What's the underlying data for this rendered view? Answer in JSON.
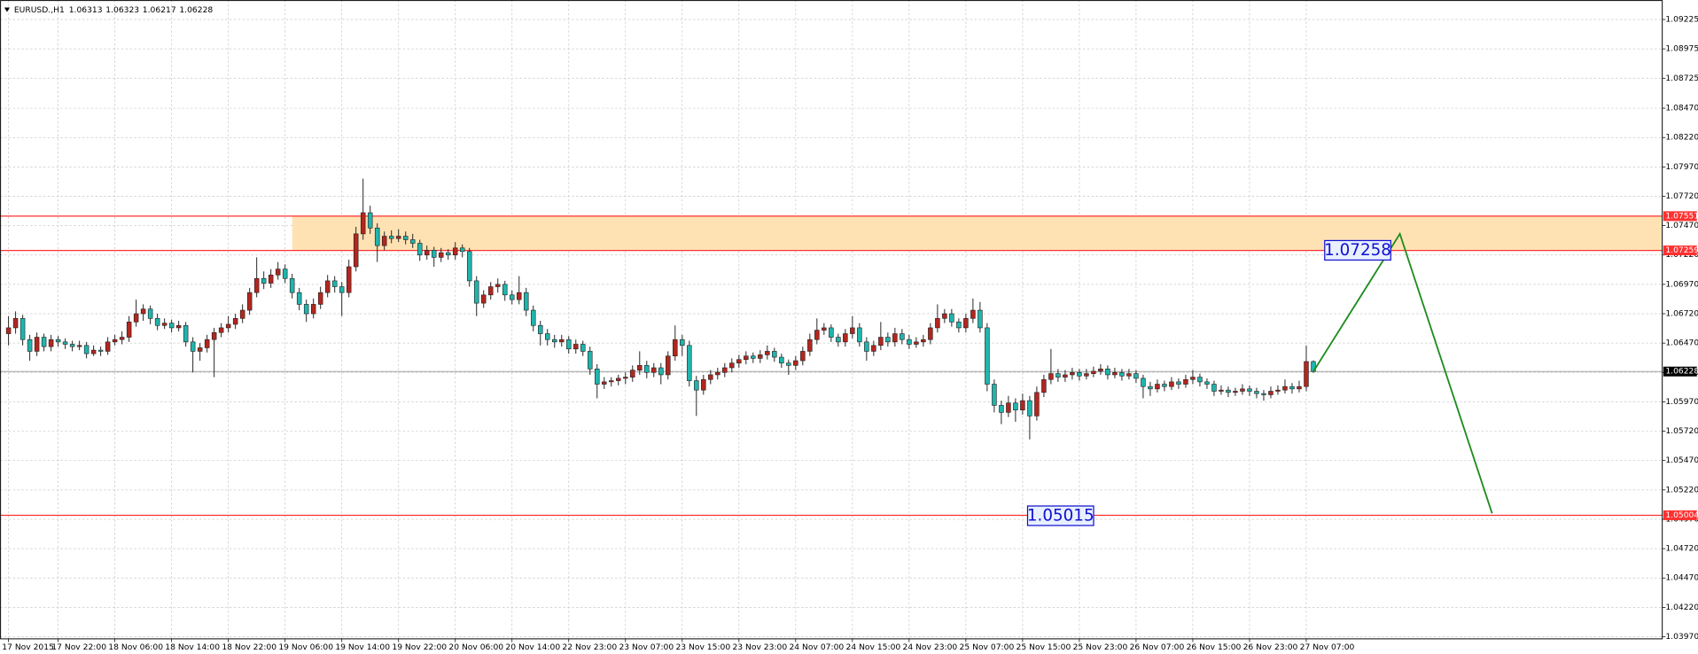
{
  "chart_data": {
    "type": "candlestick",
    "symbol": "EURUSD.,H1",
    "up_color": "#b3261e",
    "down_color": "#1fb5ad",
    "wick_color": "#222222",
    "xlim": [
      -1.2,
      233.2
    ],
    "ylim": [
      1.03952,
      1.09391
    ],
    "grid": true,
    "yticks": [
      1.09225,
      1.08975,
      1.08725,
      {
        "value": 1.0847,
        "label": "1.08470"
      },
      {
        "value": 1.0822,
        "label": "1.08220"
      },
      {
        "value": 1.0797,
        "label": "1.07970"
      },
      {
        "value": 1.0772,
        "label": "1.07720"
      },
      {
        "value": 1.0747,
        "label": "1.07470"
      },
      {
        "value": 1.0722,
        "label": "1.07220"
      },
      {
        "value": 1.0697,
        "label": "1.06970"
      },
      {
        "value": 1.0672,
        "label": "1.06720"
      },
      {
        "value": 1.0647,
        "label": "1.06470"
      },
      {
        "value": 1.0622,
        "label": "1.06220"
      },
      {
        "value": 1.0597,
        "label": "1.05970"
      },
      {
        "value": 1.0572,
        "label": "1.05720"
      },
      {
        "value": 1.0547,
        "label": "1.05470"
      },
      {
        "value": 1.0522,
        "label": "1.05220"
      },
      {
        "value": 1.0497,
        "label": "1.04970"
      },
      {
        "value": 1.0472,
        "label": "1.04720"
      },
      {
        "value": 1.0447,
        "label": "1.04470"
      },
      {
        "value": 1.0422,
        "label": "1.04220"
      },
      {
        "value": 1.0397,
        "label": "1.03970"
      }
    ],
    "xticks": [
      {
        "value": 0,
        "label": "17 Nov 2015"
      },
      {
        "value": 7,
        "label": "17 Nov 22:00"
      },
      {
        "value": 15,
        "label": "18 Nov 06:00"
      },
      {
        "value": 23,
        "label": "18 Nov 14:00"
      },
      {
        "value": 31,
        "label": "18 Nov 22:00"
      },
      {
        "value": 39,
        "label": "19 Nov 06:00"
      },
      {
        "value": 47,
        "label": "19 Nov 14:00"
      },
      {
        "value": 55,
        "label": "19 Nov 22:00"
      },
      {
        "value": 63,
        "label": "20 Nov 06:00"
      },
      {
        "value": 71,
        "label": "20 Nov 14:00"
      },
      {
        "value": 79,
        "label": "22 Nov 23:00"
      },
      {
        "value": 87,
        "label": "23 Nov 07:00"
      },
      {
        "value": 95,
        "label": "23 Nov 15:00"
      },
      {
        "value": 103,
        "label": "23 Nov 23:00"
      },
      {
        "value": 111,
        "label": "24 Nov 07:00"
      },
      {
        "value": 119,
        "label": "24 Nov 15:00"
      },
      {
        "value": 127,
        "label": "24 Nov 23:00"
      },
      {
        "value": 135,
        "label": "25 Nov 07:00"
      },
      {
        "value": 143,
        "label": "25 Nov 15:00"
      },
      {
        "value": 151,
        "label": "25 Nov 23:00"
      },
      {
        "value": 159,
        "label": "26 Nov 07:00"
      },
      {
        "value": 167,
        "label": "26 Nov 15:00"
      },
      {
        "value": 175,
        "label": "26 Nov 23:00"
      },
      {
        "value": 183,
        "label": "27 Nov 07:00"
      }
    ],
    "zone": {
      "x_start": 40,
      "top": 1.07551,
      "bottom": 1.07259,
      "color": "#ffe2b4"
    },
    "hlines": [
      {
        "value": 1.07551,
        "color": "#ff3030"
      },
      {
        "value": 1.07259,
        "color": "#ff3030"
      },
      {
        "value": 1.05004,
        "color": "#ff3030"
      }
    ],
    "price_line": {
      "value": 1.06228,
      "color": "#a0a0a0"
    },
    "annotations": [
      {
        "value": 1.07258,
        "x": 185.6,
        "y": 1.0726,
        "color": "#1010d0"
      },
      {
        "value": 1.05015,
        "x": 143.7,
        "y": 1.05,
        "color": "#1010d0"
      }
    ],
    "projection": {
      "x": [
        184,
        196.2,
        209.2
      ],
      "values": [
        1.06228,
        1.074,
        1.0502
      ],
      "color": "#1e8c1e"
    },
    "candles": [
      [
        1.0655,
        1.067,
        1.0645,
        1.066
      ],
      [
        1.066,
        1.0674,
        1.0655,
        1.0668
      ],
      [
        1.0668,
        1.0671,
        1.0645,
        1.065
      ],
      [
        1.065,
        1.0654,
        1.0632,
        1.064
      ],
      [
        1.064,
        1.0656,
        1.0636,
        1.0652
      ],
      [
        1.0652,
        1.0655,
        1.064,
        1.0644
      ],
      [
        1.0644,
        1.0654,
        1.064,
        1.065
      ],
      [
        1.065,
        1.0653,
        1.0644,
        1.0648
      ],
      [
        1.0648,
        1.0651,
        1.0642,
        1.0646
      ],
      [
        1.0646,
        1.0649,
        1.064,
        1.0644
      ],
      [
        1.0644,
        1.0649,
        1.0641,
        1.0645
      ],
      [
        1.0645,
        1.0648,
        1.0634,
        1.0638
      ],
      [
        1.0638,
        1.0645,
        1.0636,
        1.0641
      ],
      [
        1.0641,
        1.0644,
        1.0636,
        1.064
      ],
      [
        1.064,
        1.0652,
        1.0637,
        1.0648
      ],
      [
        1.0648,
        1.0654,
        1.0645,
        1.065
      ],
      [
        1.065,
        1.0657,
        1.0646,
        1.0652
      ],
      [
        1.0652,
        1.067,
        1.0648,
        1.0665
      ],
      [
        1.0665,
        1.0684,
        1.0661,
        1.0672
      ],
      [
        1.0672,
        1.068,
        1.0666,
        1.0676
      ],
      [
        1.0676,
        1.0679,
        1.0663,
        1.0668
      ],
      [
        1.0668,
        1.0672,
        1.0658,
        1.0662
      ],
      [
        1.0662,
        1.0668,
        1.0659,
        1.0664
      ],
      [
        1.0664,
        1.0667,
        1.0656,
        1.066
      ],
      [
        1.066,
        1.0666,
        1.0657,
        1.0662
      ],
      [
        1.0662,
        1.0665,
        1.0644,
        1.0648
      ],
      [
        1.0648,
        1.0652,
        1.0622,
        1.064
      ],
      [
        1.064,
        1.0647,
        1.0632,
        1.0643
      ],
      [
        1.0643,
        1.0654,
        1.0639,
        1.065
      ],
      [
        1.065,
        1.066,
        1.0618,
        1.0656
      ],
      [
        1.0656,
        1.0664,
        1.0652,
        1.066
      ],
      [
        1.066,
        1.067,
        1.0656,
        1.0663
      ],
      [
        1.0663,
        1.0672,
        1.0659,
        1.0668
      ],
      [
        1.0668,
        1.068,
        1.0664,
        1.0675
      ],
      [
        1.0675,
        1.0694,
        1.0671,
        1.069
      ],
      [
        1.069,
        1.072,
        1.0686,
        1.0702
      ],
      [
        1.0702,
        1.0708,
        1.0693,
        1.0698
      ],
      [
        1.0698,
        1.071,
        1.0694,
        1.0705
      ],
      [
        1.0705,
        1.0716,
        1.0701,
        1.071
      ],
      [
        1.071,
        1.0714,
        1.0698,
        1.0702
      ],
      [
        1.0702,
        1.0706,
        1.0685,
        1.069
      ],
      [
        1.069,
        1.0694,
        1.0675,
        1.068
      ],
      [
        1.068,
        1.0684,
        1.0665,
        1.0672
      ],
      [
        1.0672,
        1.0685,
        1.0668,
        1.068
      ],
      [
        1.068,
        1.0695,
        1.0676,
        1.069
      ],
      [
        1.069,
        1.0705,
        1.0686,
        1.07
      ],
      [
        1.07,
        1.0704,
        1.069,
        1.0695
      ],
      [
        1.0695,
        1.0699,
        1.067,
        1.069
      ],
      [
        1.069,
        1.0718,
        1.0686,
        1.0712
      ],
      [
        1.0712,
        1.0746,
        1.0708,
        1.074
      ],
      [
        1.074,
        1.0787,
        1.0735,
        1.0758
      ],
      [
        1.0758,
        1.0764,
        1.074,
        1.0745
      ],
      [
        1.0745,
        1.0749,
        1.0716,
        1.073
      ],
      [
        1.073,
        1.0742,
        1.0726,
        1.0738
      ],
      [
        1.0738,
        1.0743,
        1.0732,
        1.0736
      ],
      [
        1.0736,
        1.0744,
        1.0733,
        1.0738
      ],
      [
        1.0738,
        1.0742,
        1.0731,
        1.0735
      ],
      [
        1.0735,
        1.074,
        1.0728,
        1.0732
      ],
      [
        1.0732,
        1.0735,
        1.0717,
        1.0722
      ],
      [
        1.0722,
        1.073,
        1.0718,
        1.0726
      ],
      [
        1.0726,
        1.0729,
        1.0712,
        1.072
      ],
      [
        1.072,
        1.0728,
        1.0716,
        1.0724
      ],
      [
        1.0724,
        1.0727,
        1.0718,
        1.0722
      ],
      [
        1.0722,
        1.0733,
        1.0718,
        1.0728
      ],
      [
        1.0728,
        1.0731,
        1.072,
        1.0725
      ],
      [
        1.0725,
        1.0728,
        1.0695,
        1.07
      ],
      [
        1.07,
        1.0704,
        1.067,
        1.0681
      ],
      [
        1.0681,
        1.0692,
        1.0677,
        1.0688
      ],
      [
        1.0688,
        1.0699,
        1.0684,
        1.0695
      ],
      [
        1.0695,
        1.0702,
        1.069,
        1.0697
      ],
      [
        1.0697,
        1.07,
        1.0683,
        1.0688
      ],
      [
        1.0688,
        1.0692,
        1.068,
        1.0684
      ],
      [
        1.0684,
        1.0704,
        1.068,
        1.069
      ],
      [
        1.069,
        1.0694,
        1.067,
        1.0675
      ],
      [
        1.0675,
        1.0679,
        1.0657,
        1.0662
      ],
      [
        1.0662,
        1.0666,
        1.0645,
        1.0655
      ],
      [
        1.0655,
        1.0659,
        1.0645,
        1.065
      ],
      [
        1.065,
        1.0654,
        1.0643,
        1.0648
      ],
      [
        1.0648,
        1.0654,
        1.0644,
        1.065
      ],
      [
        1.065,
        1.0653,
        1.0638,
        1.0642
      ],
      [
        1.0642,
        1.065,
        1.0638,
        1.0646
      ],
      [
        1.0646,
        1.0649,
        1.0636,
        1.064
      ],
      [
        1.064,
        1.0644,
        1.062,
        1.0625
      ],
      [
        1.0625,
        1.0629,
        1.06,
        1.0612
      ],
      [
        1.0612,
        1.0618,
        1.0608,
        1.0614
      ],
      [
        1.0614,
        1.0618,
        1.061,
        1.0615
      ],
      [
        1.0615,
        1.062,
        1.0611,
        1.0617
      ],
      [
        1.0617,
        1.0622,
        1.0612,
        1.0618
      ],
      [
        1.0618,
        1.0628,
        1.0614,
        1.0624
      ],
      [
        1.0624,
        1.064,
        1.062,
        1.0628
      ],
      [
        1.0628,
        1.0632,
        1.0617,
        1.0622
      ],
      [
        1.0622,
        1.063,
        1.0618,
        1.0626
      ],
      [
        1.0626,
        1.063,
        1.0612,
        1.062
      ],
      [
        1.062,
        1.064,
        1.0616,
        1.0636
      ],
      [
        1.0636,
        1.0662,
        1.0632,
        1.065
      ],
      [
        1.065,
        1.0654,
        1.0636,
        1.0645
      ],
      [
        1.0645,
        1.0649,
        1.061,
        1.0615
      ],
      [
        1.0615,
        1.0619,
        1.0585,
        1.0607
      ],
      [
        1.0607,
        1.062,
        1.0603,
        1.0616
      ],
      [
        1.0616,
        1.0624,
        1.0612,
        1.062
      ],
      [
        1.062,
        1.0626,
        1.0616,
        1.0622
      ],
      [
        1.0622,
        1.063,
        1.0618,
        1.0626
      ],
      [
        1.0626,
        1.0634,
        1.0622,
        1.063
      ],
      [
        1.063,
        1.0637,
        1.0626,
        1.0633
      ],
      [
        1.0633,
        1.064,
        1.0629,
        1.0636
      ],
      [
        1.0636,
        1.0639,
        1.063,
        1.0634
      ],
      [
        1.0634,
        1.0641,
        1.063,
        1.0637
      ],
      [
        1.0637,
        1.0645,
        1.0633,
        1.064
      ],
      [
        1.064,
        1.0643,
        1.0631,
        1.0635
      ],
      [
        1.0635,
        1.0638,
        1.0626,
        1.063
      ],
      [
        1.063,
        1.0633,
        1.062,
        1.0628
      ],
      [
        1.0628,
        1.0636,
        1.0624,
        1.0632
      ],
      [
        1.0632,
        1.0644,
        1.0628,
        1.064
      ],
      [
        1.064,
        1.0655,
        1.0636,
        1.065
      ],
      [
        1.065,
        1.0668,
        1.0646,
        1.0658
      ],
      [
        1.0658,
        1.0664,
        1.0654,
        1.066
      ],
      [
        1.066,
        1.0663,
        1.0648,
        1.0652
      ],
      [
        1.0652,
        1.0655,
        1.0644,
        1.0648
      ],
      [
        1.0648,
        1.0659,
        1.0644,
        1.0655
      ],
      [
        1.0655,
        1.067,
        1.0651,
        1.066
      ],
      [
        1.066,
        1.0664,
        1.0644,
        1.0648
      ],
      [
        1.0648,
        1.0652,
        1.0632,
        1.064
      ],
      [
        1.064,
        1.0649,
        1.0636,
        1.0645
      ],
      [
        1.0645,
        1.0665,
        1.0641,
        1.0652
      ],
      [
        1.0652,
        1.0656,
        1.0644,
        1.0648
      ],
      [
        1.0648,
        1.066,
        1.0644,
        1.0655
      ],
      [
        1.0655,
        1.0659,
        1.0646,
        1.065
      ],
      [
        1.065,
        1.0654,
        1.0642,
        1.0646
      ],
      [
        1.0646,
        1.0652,
        1.0643,
        1.0648
      ],
      [
        1.0648,
        1.0654,
        1.0644,
        1.065
      ],
      [
        1.065,
        1.0664,
        1.0646,
        1.066
      ],
      [
        1.066,
        1.068,
        1.0656,
        1.0668
      ],
      [
        1.0668,
        1.0676,
        1.0664,
        1.0672
      ],
      [
        1.0672,
        1.0676,
        1.0661,
        1.0665
      ],
      [
        1.0665,
        1.0668,
        1.0656,
        1.066
      ],
      [
        1.066,
        1.0672,
        1.0656,
        1.0668
      ],
      [
        1.0668,
        1.0685,
        1.0664,
        1.0675
      ],
      [
        1.0675,
        1.0682,
        1.0656,
        1.066
      ],
      [
        1.066,
        1.0664,
        1.0606,
        1.0612
      ],
      [
        1.0612,
        1.0616,
        1.0588,
        1.0594
      ],
      [
        1.0594,
        1.0598,
        1.0578,
        1.0588
      ],
      [
        1.0588,
        1.0602,
        1.0584,
        1.0596
      ],
      [
        1.0596,
        1.06,
        1.058,
        1.059
      ],
      [
        1.059,
        1.0604,
        1.0586,
        1.0598
      ],
      [
        1.0598,
        1.0602,
        1.0565,
        1.0585
      ],
      [
        1.0585,
        1.061,
        1.0581,
        1.0605
      ],
      [
        1.0605,
        1.062,
        1.0601,
        1.0616
      ],
      [
        1.0616,
        1.0642,
        1.0612,
        1.0621
      ],
      [
        1.0621,
        1.0625,
        1.0614,
        1.0618
      ],
      [
        1.0618,
        1.0624,
        1.0614,
        1.062
      ],
      [
        1.062,
        1.0626,
        1.0616,
        1.0622
      ],
      [
        1.0622,
        1.0625,
        1.0615,
        1.0619
      ],
      [
        1.0619,
        1.0625,
        1.0616,
        1.0621
      ],
      [
        1.0621,
        1.0627,
        1.0618,
        1.0623
      ],
      [
        1.0623,
        1.0629,
        1.062,
        1.0625
      ],
      [
        1.0625,
        1.0628,
        1.0616,
        1.062
      ],
      [
        1.062,
        1.0626,
        1.0617,
        1.0622
      ],
      [
        1.0622,
        1.0625,
        1.0615,
        1.0619
      ],
      [
        1.0619,
        1.0625,
        1.0616,
        1.0621
      ],
      [
        1.0621,
        1.0624,
        1.0613,
        1.0617
      ],
      [
        1.0617,
        1.062,
        1.06,
        1.061
      ],
      [
        1.061,
        1.0614,
        1.0602,
        1.0608
      ],
      [
        1.0608,
        1.0616,
        1.0605,
        1.0612
      ],
      [
        1.0612,
        1.0615,
        1.0606,
        1.061
      ],
      [
        1.061,
        1.0618,
        1.0607,
        1.0614
      ],
      [
        1.0614,
        1.0617,
        1.0608,
        1.0612
      ],
      [
        1.0612,
        1.062,
        1.0609,
        1.0616
      ],
      [
        1.0616,
        1.0624,
        1.0612,
        1.0618
      ],
      [
        1.0618,
        1.0621,
        1.061,
        1.0614
      ],
      [
        1.0614,
        1.0617,
        1.0608,
        1.0612
      ],
      [
        1.0612,
        1.0615,
        1.0602,
        1.0606
      ],
      [
        1.0606,
        1.0611,
        1.0603,
        1.0607
      ],
      [
        1.0607,
        1.061,
        1.0601,
        1.0605
      ],
      [
        1.0605,
        1.0609,
        1.0602,
        1.0606
      ],
      [
        1.0606,
        1.0612,
        1.0603,
        1.0608
      ],
      [
        1.0608,
        1.0611,
        1.0602,
        1.0606
      ],
      [
        1.0606,
        1.0609,
        1.06,
        1.0604
      ],
      [
        1.0604,
        1.0607,
        1.0598,
        1.0603
      ],
      [
        1.0603,
        1.061,
        1.06,
        1.0606
      ],
      [
        1.0606,
        1.0611,
        1.0603,
        1.0607
      ],
      [
        1.0607,
        1.0616,
        1.0604,
        1.061
      ],
      [
        1.061,
        1.0613,
        1.0604,
        1.0608
      ],
      [
        1.0608,
        1.0615,
        1.0605,
        1.061
      ],
      [
        1.061,
        1.0645,
        1.0606,
        1.06313
      ],
      [
        1.06313,
        1.06323,
        1.06217,
        1.06228
      ]
    ]
  }
}
